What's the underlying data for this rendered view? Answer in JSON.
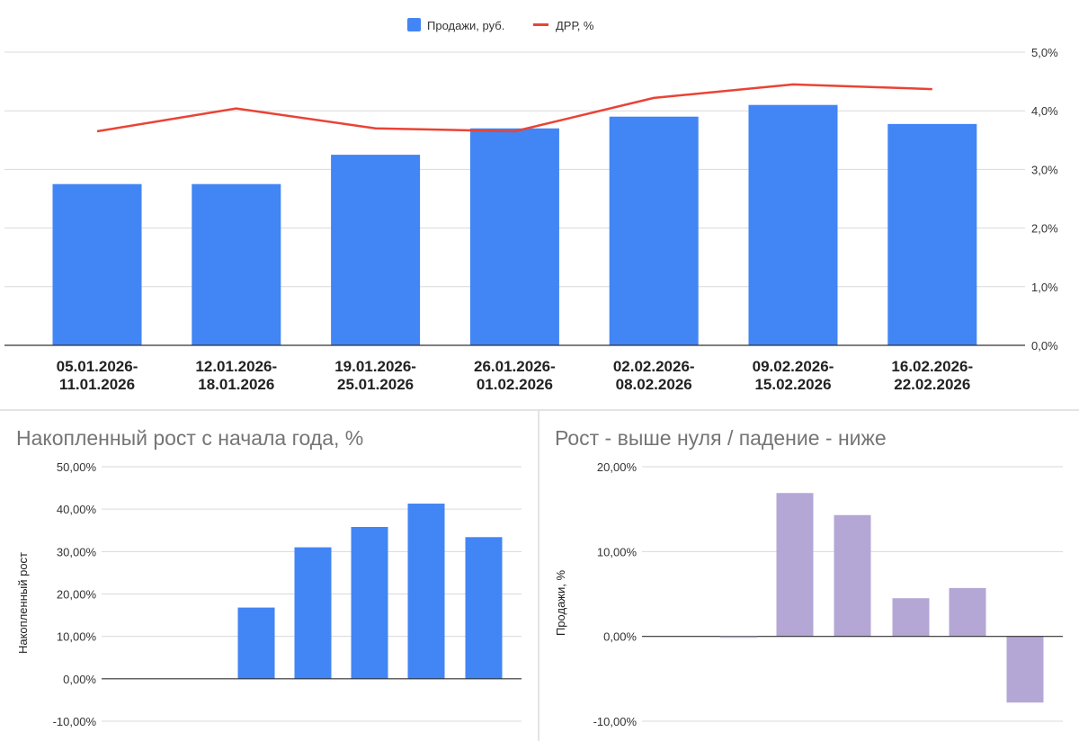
{
  "colors": {
    "bar_blue": "#4285f4",
    "line_red": "#ea4335",
    "bar_purple": "#b4a7d6",
    "grid": "#d9d9d9",
    "axis": "#333333"
  },
  "chart_data": [
    {
      "type": "bar",
      "title": "",
      "legend": [
        "Продажи, руб.",
        "ДРР, %"
      ],
      "legend_position": "top-center",
      "categories": [
        [
          "05.01.2026-",
          "11.01.2026"
        ],
        [
          "12.01.2026-",
          "18.01.2026"
        ],
        [
          "19.01.2026-",
          "25.01.2026"
        ],
        [
          "26.01.2026-",
          "01.02.2026"
        ],
        [
          "02.02.2026-",
          "08.02.2026"
        ],
        [
          "09.02.2026-",
          "15.02.2026"
        ],
        [
          "16.02.2026-",
          "22.02.2026"
        ]
      ],
      "series": [
        {
          "name": "Продажи, руб.",
          "kind": "bar",
          "axis": "left",
          "values": [
            55,
            55,
            65,
            74,
            78,
            82,
            75.5
          ],
          "note": "left axis unlabeled; values relative (axis 0–100)"
        },
        {
          "name": "ДРР, %",
          "kind": "line",
          "axis": "right",
          "values": [
            3.65,
            4.04,
            3.7,
            3.65,
            4.22,
            4.45,
            4.37
          ]
        }
      ],
      "ylim_left": [
        0,
        100
      ],
      "y2lim": [
        0,
        5
      ],
      "y2_ticks": [
        "0,0%",
        "1,0%",
        "2,0%",
        "3,0%",
        "4,0%",
        "5,0%"
      ],
      "grid": true
    },
    {
      "type": "bar",
      "title": "Накопленный рост с начала года, %",
      "ylabel": "Накопленный рост",
      "categories": [
        "",
        "",
        "",
        "",
        "",
        "",
        ""
      ],
      "values": [
        0,
        0,
        16.8,
        31.0,
        35.8,
        41.3,
        33.4
      ],
      "ylim": [
        -10,
        50
      ],
      "y_ticks": [
        "-10,00%",
        "0,00%",
        "10,00%",
        "20,00%",
        "30,00%",
        "40,00%",
        "50,00%"
      ],
      "grid": true
    },
    {
      "type": "bar",
      "title": "Рост - выше нуля / падение - ниже",
      "ylabel": "Продажи, %",
      "categories": [
        "",
        "",
        "",
        "",
        "",
        "",
        ""
      ],
      "values": [
        0,
        0,
        16.9,
        14.3,
        4.5,
        5.7,
        -7.8
      ],
      "ylim": [
        -10,
        20
      ],
      "y_ticks": [
        "-10,00%",
        "0,00%",
        "10,00%",
        "20,00%"
      ],
      "grid": true
    }
  ]
}
